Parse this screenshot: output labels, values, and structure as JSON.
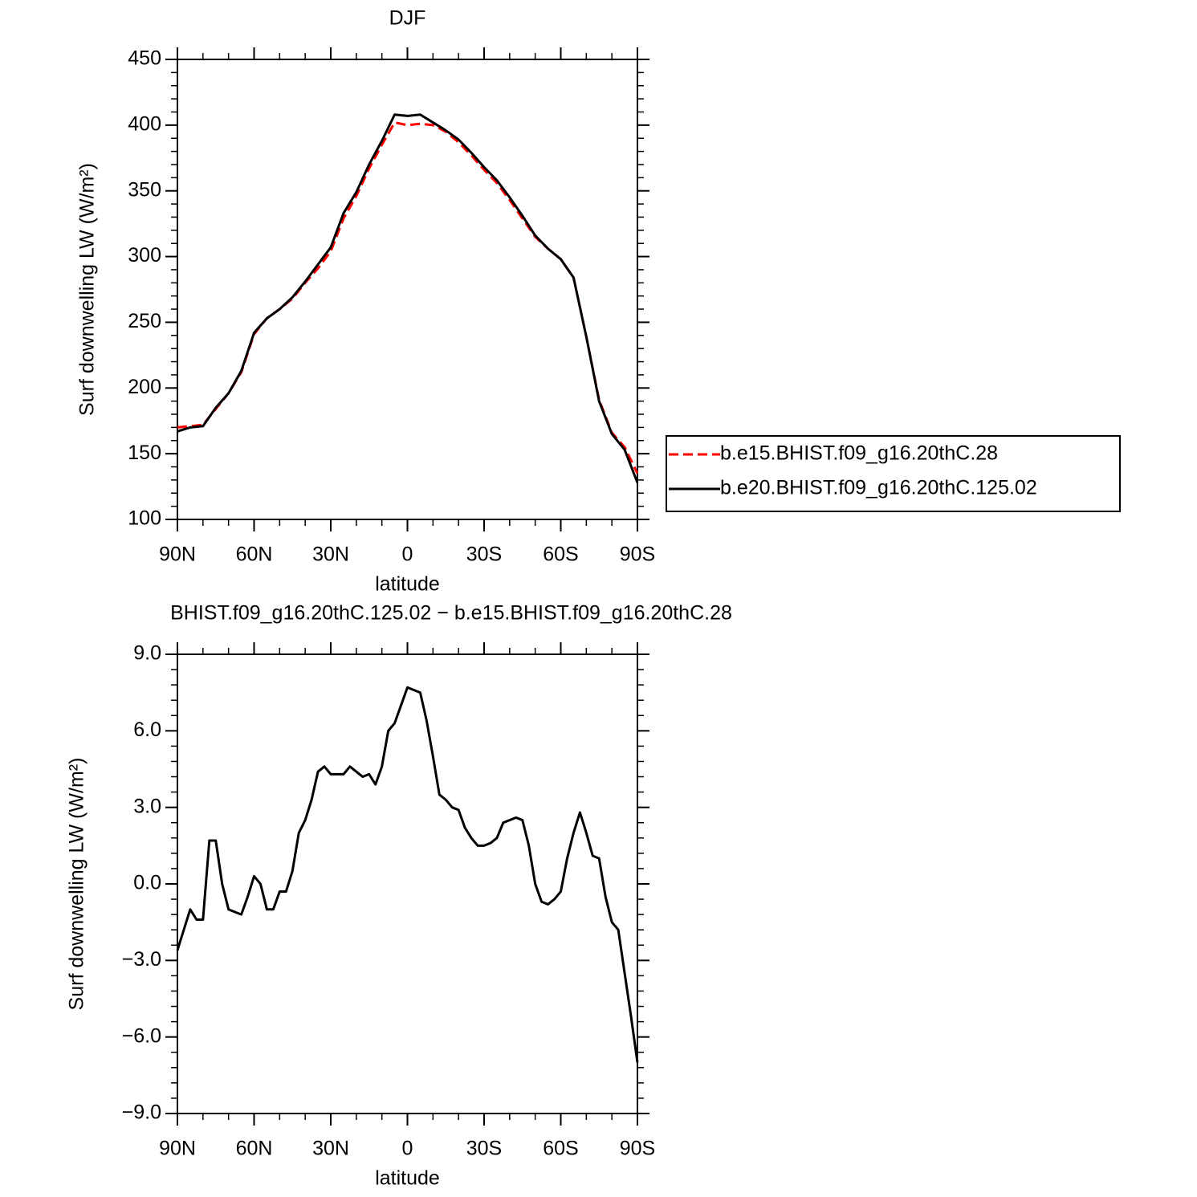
{
  "chart_data": [
    {
      "type": "line",
      "title": "DJF",
      "xlabel": "latitude",
      "ylabel": "Surf downwelling LW (W/m²)",
      "x": [
        90,
        85,
        80,
        75,
        70,
        65,
        60,
        55,
        50,
        45,
        40,
        35,
        30,
        25,
        20,
        15,
        10,
        5,
        0,
        -5,
        -10,
        -15,
        -20,
        -25,
        -30,
        -35,
        -40,
        -45,
        -50,
        -55,
        -60,
        -65,
        -70,
        -75,
        -80,
        -85,
        -90
      ],
      "series": [
        {
          "name": "b.e15.BHIST.f09_g16.20thC.28",
          "color": "#ff0000",
          "linestyle": "dashed",
          "values": [
            170,
            171,
            172,
            184,
            196,
            212,
            241,
            253,
            260,
            268,
            280,
            291,
            304,
            329,
            346,
            367,
            385,
            402,
            400,
            401,
            400,
            395,
            387,
            377,
            366,
            356,
            343,
            329,
            315,
            306,
            298,
            284,
            239,
            191,
            166,
            155,
            135
          ]
        },
        {
          "name": "b.e20.BHIST.f09_g16.20thC.125.02",
          "color": "#000000",
          "linestyle": "solid",
          "values": [
            167,
            170,
            171,
            185,
            196,
            213,
            242,
            253,
            260,
            269,
            281,
            294,
            307,
            333,
            349,
            370,
            388,
            408,
            407,
            408,
            402,
            396,
            389,
            379,
            368,
            358,
            345,
            331,
            316,
            306,
            298,
            284,
            239,
            190,
            165,
            153,
            128
          ]
        }
      ],
      "xlim": [
        90,
        -90
      ],
      "xticks": [
        {
          "value": 90,
          "label": "90N"
        },
        {
          "value": 60,
          "label": "60N"
        },
        {
          "value": 30,
          "label": "30N"
        },
        0,
        {
          "value": -30,
          "label": "30S"
        },
        {
          "value": -60,
          "label": "60S"
        },
        {
          "value": -90,
          "label": "90S"
        }
      ],
      "ylim": [
        100,
        450
      ],
      "yticks": [
        100,
        150,
        200,
        250,
        300,
        350,
        400,
        450
      ],
      "legend_position": "right"
    },
    {
      "type": "line",
      "title": "BHIST.f09_g16.20thC.125.02 − b.e15.BHIST.f09_g16.20thC.28",
      "xlabel": "latitude",
      "ylabel": "Surf downwelling LW (W/m²)",
      "x": [
        90,
        87.5,
        85,
        82.5,
        80,
        77.5,
        75,
        72.5,
        70,
        67.5,
        65,
        62.5,
        60,
        57.5,
        55,
        52.5,
        50,
        47.5,
        45,
        42.5,
        40,
        37.5,
        35,
        32.5,
        30,
        27.5,
        25,
        22.5,
        20,
        17.5,
        15,
        12.5,
        10,
        7.5,
        5,
        2.5,
        0,
        -2.5,
        -5,
        -7.5,
        -10,
        -12.5,
        -15,
        -17.5,
        -20,
        -22.5,
        -25,
        -27.5,
        -30,
        -32.5,
        -35,
        -37.5,
        -40,
        -42.5,
        -45,
        -47.5,
        -50,
        -52.5,
        -55,
        -57.5,
        -60,
        -62.5,
        -65,
        -67.5,
        -70,
        -72.5,
        -75,
        -77.5,
        -80,
        -82.5,
        -85,
        -87.5,
        -90
      ],
      "values": [
        -2.6,
        -1.8,
        -1.0,
        -1.4,
        -1.4,
        1.7,
        1.7,
        0.0,
        -1.0,
        -1.1,
        -1.2,
        -0.5,
        0.3,
        0.0,
        -1.0,
        -1.0,
        -0.3,
        -0.3,
        0.5,
        2.0,
        2.5,
        3.3,
        4.4,
        4.6,
        4.3,
        4.3,
        4.3,
        4.6,
        4.4,
        4.2,
        4.3,
        3.9,
        4.6,
        6.0,
        6.3,
        7.0,
        7.7,
        7.6,
        7.5,
        6.4,
        5.0,
        3.5,
        3.3,
        3.0,
        2.9,
        2.2,
        1.8,
        1.5,
        1.5,
        1.6,
        1.8,
        2.4,
        2.5,
        2.6,
        2.5,
        1.5,
        0.0,
        -0.7,
        -0.8,
        -0.6,
        -0.3,
        1.0,
        2.0,
        2.8,
        2.0,
        1.1,
        1.0,
        -0.5,
        -1.5,
        -1.8,
        -3.5,
        -5.2,
        -7.0
      ],
      "color": "#000000",
      "xlim": [
        90,
        -90
      ],
      "xticks": [
        {
          "value": 90,
          "label": "90N"
        },
        {
          "value": 60,
          "label": "60N"
        },
        {
          "value": 30,
          "label": "30N"
        },
        0,
        {
          "value": -30,
          "label": "30S"
        },
        {
          "value": -60,
          "label": "60S"
        },
        {
          "value": -90,
          "label": "90S"
        }
      ],
      "ylim": [
        -9,
        9
      ],
      "yticks": [
        {
          "value": -9,
          "label": "−9.0"
        },
        {
          "value": -6,
          "label": "−6.0"
        },
        {
          "value": -3,
          "label": "−3.0"
        },
        {
          "value": 0,
          "label": "0.0"
        },
        {
          "value": 3,
          "label": "3.0"
        },
        {
          "value": 6,
          "label": "6.0"
        },
        {
          "value": 9,
          "label": "9.0"
        }
      ]
    }
  ]
}
